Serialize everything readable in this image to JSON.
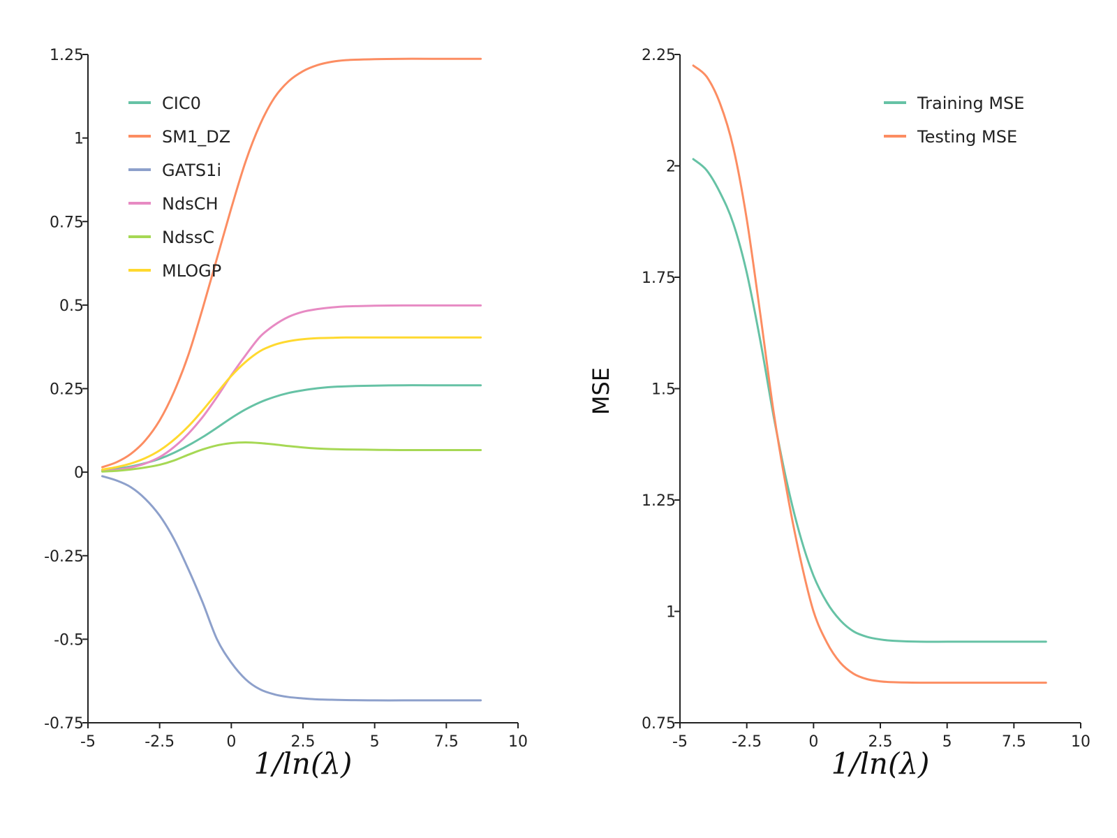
{
  "chart_data": [
    {
      "type": "line",
      "title": "",
      "xlabel": "1/ln(λ)",
      "ylabel": "",
      "xlim": [
        -5,
        10
      ],
      "ylim": [
        -0.75,
        1.25
      ],
      "xticks": [
        -5,
        -2.5,
        0,
        2.5,
        5,
        7.5,
        10
      ],
      "xtick_labels": [
        "-5",
        "-2.5",
        "0",
        "2.5",
        "5",
        "7.5",
        "10"
      ],
      "yticks": [
        -0.75,
        -0.5,
        -0.25,
        0,
        0.25,
        0.5,
        0.75,
        1,
        1.25
      ],
      "ytick_labels": [
        "-0.75",
        "-0.5",
        "-0.25",
        "0",
        "0.25",
        "0.5",
        "0.75",
        "1",
        "1.25"
      ],
      "legend_position": "top-left",
      "x": [
        -4.5,
        -4.0,
        -3.5,
        -3.0,
        -2.5,
        -2.0,
        -1.5,
        -1.0,
        -0.5,
        0.0,
        0.5,
        1.0,
        1.5,
        2.0,
        2.5,
        3.0,
        3.5,
        4.0,
        5.0,
        6.0,
        7.0,
        8.7
      ],
      "series": [
        {
          "name": "CIC0",
          "color": "#66c2a5",
          "values": [
            0.005,
            0.01,
            0.017,
            0.027,
            0.04,
            0.058,
            0.08,
            0.105,
            0.133,
            0.162,
            0.188,
            0.209,
            0.225,
            0.237,
            0.245,
            0.251,
            0.255,
            0.257,
            0.259,
            0.26,
            0.26,
            0.26
          ]
        },
        {
          "name": "SM1_DZ",
          "color": "#fc8d62",
          "values": [
            0.015,
            0.03,
            0.055,
            0.095,
            0.155,
            0.24,
            0.35,
            0.49,
            0.64,
            0.79,
            0.93,
            1.04,
            1.12,
            1.17,
            1.2,
            1.218,
            1.228,
            1.233,
            1.236,
            1.237,
            1.237,
            1.237
          ]
        },
        {
          "name": "GATS1i",
          "color": "#8da0cb",
          "values": [
            -0.012,
            -0.025,
            -0.045,
            -0.08,
            -0.13,
            -0.2,
            -0.29,
            -0.39,
            -0.5,
            -0.57,
            -0.62,
            -0.65,
            -0.665,
            -0.673,
            -0.677,
            -0.68,
            -0.681,
            -0.682,
            -0.683,
            -0.683,
            -0.683,
            -0.683
          ]
        },
        {
          "name": "NdsCH",
          "color": "#e78ac3",
          "values": [
            0.003,
            0.007,
            0.014,
            0.026,
            0.045,
            0.075,
            0.115,
            0.165,
            0.225,
            0.29,
            0.35,
            0.405,
            0.44,
            0.465,
            0.48,
            0.488,
            0.493,
            0.496,
            0.498,
            0.499,
            0.499,
            0.499
          ]
        },
        {
          "name": "NdssC",
          "color": "#a6d854",
          "values": [
            0.002,
            0.004,
            0.008,
            0.014,
            0.022,
            0.035,
            0.052,
            0.068,
            0.08,
            0.087,
            0.089,
            0.087,
            0.083,
            0.078,
            0.074,
            0.071,
            0.069,
            0.068,
            0.067,
            0.066,
            0.066,
            0.066
          ]
        },
        {
          "name": "MLOGP",
          "color": "#ffd92f",
          "values": [
            0.008,
            0.015,
            0.026,
            0.042,
            0.065,
            0.097,
            0.137,
            0.185,
            0.237,
            0.288,
            0.33,
            0.362,
            0.381,
            0.392,
            0.398,
            0.401,
            0.402,
            0.403,
            0.403,
            0.403,
            0.403,
            0.403
          ]
        }
      ]
    },
    {
      "type": "line",
      "title": "",
      "xlabel": "1/ln(λ)",
      "ylabel": "MSE",
      "xlim": [
        -5,
        10
      ],
      "ylim": [
        0.75,
        2.25
      ],
      "xticks": [
        -5,
        -2.5,
        0,
        2.5,
        5,
        7.5,
        10
      ],
      "xtick_labels": [
        "-5",
        "-2.5",
        "0",
        "2.5",
        "5",
        "7.5",
        "10"
      ],
      "yticks": [
        0.75,
        1,
        1.25,
        1.5,
        1.75,
        2,
        2.25
      ],
      "ytick_labels": [
        "0.75",
        "1",
        "1.25",
        "1.5",
        "1.75",
        "2",
        "2.25"
      ],
      "legend_position": "top-right",
      "x": [
        -4.5,
        -4.0,
        -3.5,
        -3.0,
        -2.5,
        -2.0,
        -1.5,
        -1.0,
        -0.5,
        0.0,
        0.5,
        1.0,
        1.5,
        2.0,
        2.5,
        3.0,
        4.0,
        5.0,
        6.0,
        7.0,
        8.7
      ],
      "series": [
        {
          "name": "Training MSE",
          "color": "#66c2a5",
          "values": [
            2.015,
            1.99,
            1.94,
            1.87,
            1.76,
            1.61,
            1.44,
            1.29,
            1.17,
            1.08,
            1.02,
            0.98,
            0.955,
            0.943,
            0.937,
            0.934,
            0.932,
            0.932,
            0.932,
            0.932,
            0.932
          ]
        },
        {
          "name": "Testing MSE",
          "color": "#fc8d62",
          "values": [
            2.225,
            2.2,
            2.14,
            2.04,
            1.88,
            1.67,
            1.45,
            1.27,
            1.12,
            1.0,
            0.93,
            0.885,
            0.86,
            0.848,
            0.843,
            0.841,
            0.84,
            0.84,
            0.84,
            0.84,
            0.84
          ]
        }
      ]
    }
  ]
}
